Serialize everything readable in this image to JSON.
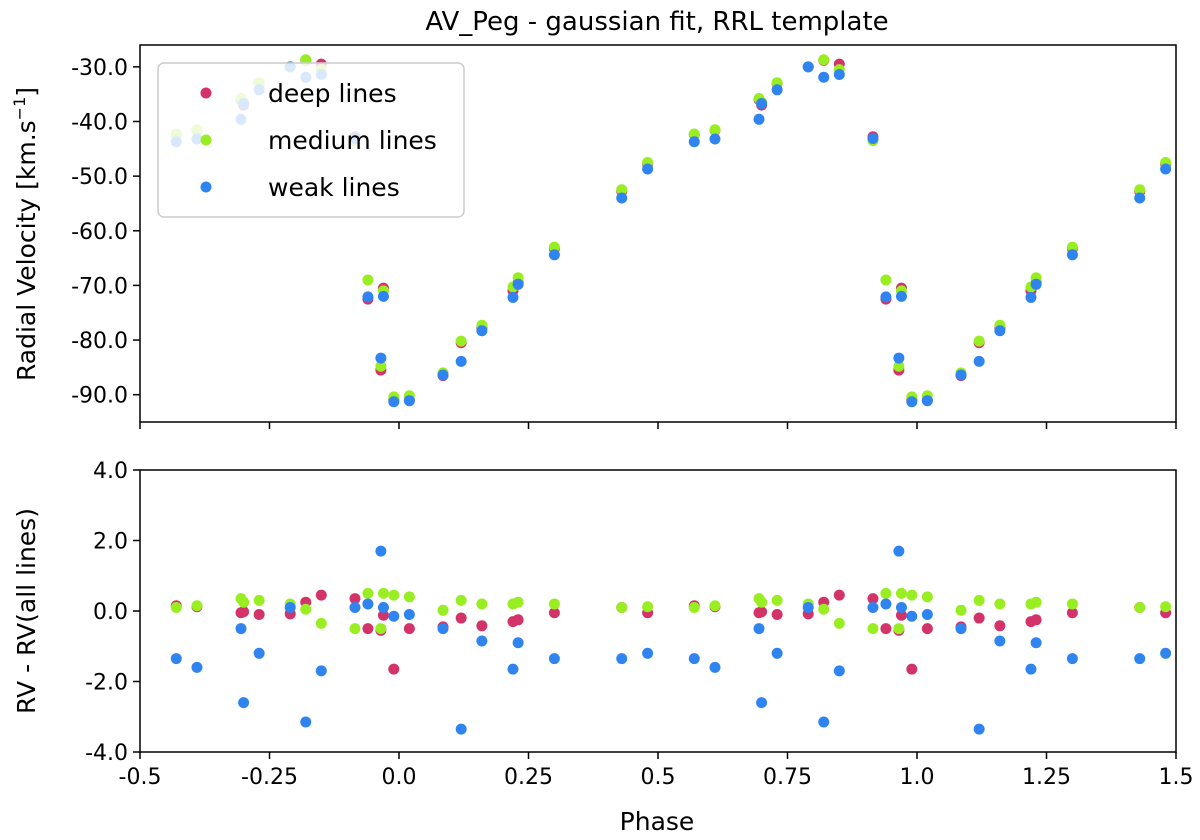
{
  "chart_data": {
    "type": "scatter",
    "title": "AV_Peg - gaussian fit, RRL template",
    "xlabel": "Phase",
    "xlim": [
      -0.5,
      1.5
    ],
    "x_ticks": [
      "-0.5",
      "-0.25",
      "0.0",
      "0.25",
      "0.5",
      "0.75",
      "1.0",
      "1.25",
      "1.5"
    ],
    "x_tick_values": [
      -0.5,
      -0.25,
      0.0,
      0.25,
      0.5,
      0.75,
      1.0,
      1.25,
      1.5
    ],
    "colors": {
      "deep": "#d4336a",
      "medium": "#99ee22",
      "weak": "#2f84f0"
    },
    "legend": {
      "location": "upper-left",
      "entries": [
        {
          "key": "deep",
          "label": "deep lines"
        },
        {
          "key": "medium",
          "label": "medium lines"
        },
        {
          "key": "weak",
          "label": "weak lines"
        }
      ]
    },
    "panels": [
      {
        "name": "top",
        "ylabel": "Radial Velocity [km.s",
        "ylabel_sup": "−1",
        "ylabel_end": "]",
        "ylim": [
          -95,
          -26
        ],
        "y_ticks": [
          "-30.0",
          "-40.0",
          "-50.0",
          "-60.0",
          "-70.0",
          "-80.0",
          "-90.0"
        ],
        "y_tick_values": [
          -30,
          -40,
          -50,
          -60,
          -70,
          -80,
          -90
        ],
        "phases": [
          0.57,
          0.61,
          0.695,
          0.7,
          0.73,
          0.79,
          0.82,
          0.85,
          0.915,
          0.94,
          0.965,
          0.97,
          0.99,
          1.02,
          1.085,
          1.12,
          1.16,
          1.22,
          1.23,
          1.3,
          1.43,
          1.48
        ],
        "series": [
          {
            "key": "deep",
            "y": [
              -42.4,
              -41.6,
              -36.0,
              -37.0,
              -33.0,
              -30.0,
              -28.8,
              -29.5,
              -42.8,
              -72.5,
              -85.5,
              -70.5,
              -91.0,
              -91.0,
              -86.5,
              -80.5,
              -77.8,
              -71.0,
              -69.5,
              -63.3,
              -52.8,
              -47.8
            ]
          },
          {
            "key": "medium",
            "y": [
              -42.3,
              -41.5,
              -35.8,
              -36.5,
              -32.9,
              -30.0,
              -28.7,
              -30.5,
              -43.5,
              -69.0,
              -84.8,
              -71.0,
              -90.4,
              -90.2,
              -86.0,
              -80.2,
              -77.3,
              -70.3,
              -68.6,
              -63.0,
              -52.5,
              -47.5
            ]
          },
          {
            "key": "weak",
            "y": [
              -43.7,
              -43.2,
              -39.6,
              -36.7,
              -34.2,
              -30.0,
              -31.9,
              -31.4,
              -43.1,
              -72.1,
              -83.3,
              -72.0,
              -91.3,
              -91.1,
              -86.4,
              -83.9,
              -78.3,
              -72.2,
              -69.8,
              -64.4,
              -54.0,
              -48.7
            ]
          }
        ]
      },
      {
        "name": "bottom",
        "ylabel": "RV - RV(all lines)",
        "ylim": [
          -4.0,
          4.0
        ],
        "y_ticks": [
          "4.0",
          "2.0",
          "0.0",
          "-2.0",
          "-4.0"
        ],
        "y_tick_values": [
          4,
          2,
          0,
          -2,
          -4
        ],
        "phases": [
          0.57,
          0.61,
          0.695,
          0.7,
          0.73,
          0.79,
          0.82,
          0.85,
          0.915,
          0.94,
          0.965,
          0.97,
          0.99,
          1.02,
          1.085,
          1.12,
          1.16,
          1.22,
          1.23,
          1.3,
          1.43,
          1.48
        ],
        "series": [
          {
            "key": "deep",
            "y": [
              0.15,
              0.12,
              -0.05,
              -0.02,
              -0.1,
              -0.08,
              0.25,
              0.45,
              0.35,
              -0.5,
              -0.55,
              -0.12,
              -1.65,
              -0.5,
              -0.45,
              -0.2,
              -0.42,
              -0.3,
              -0.25,
              -0.05,
              0.1,
              -0.05
            ]
          },
          {
            "key": "medium",
            "y": [
              0.1,
              0.15,
              0.35,
              0.25,
              0.3,
              0.2,
              0.05,
              -0.35,
              -0.5,
              0.5,
              -0.5,
              0.5,
              0.45,
              0.4,
              0.02,
              0.3,
              0.2,
              0.2,
              0.25,
              0.2,
              0.1,
              0.12
            ]
          },
          {
            "key": "weak",
            "y": [
              -1.35,
              -1.6,
              -0.5,
              -2.6,
              -1.2,
              0.1,
              -3.15,
              -1.7,
              0.1,
              0.2,
              1.7,
              0.1,
              -0.15,
              -0.1,
              -0.5,
              -3.35,
              -0.85,
              -1.65,
              -0.9,
              -1.35,
              -1.35,
              -1.2
            ]
          }
        ]
      }
    ]
  }
}
